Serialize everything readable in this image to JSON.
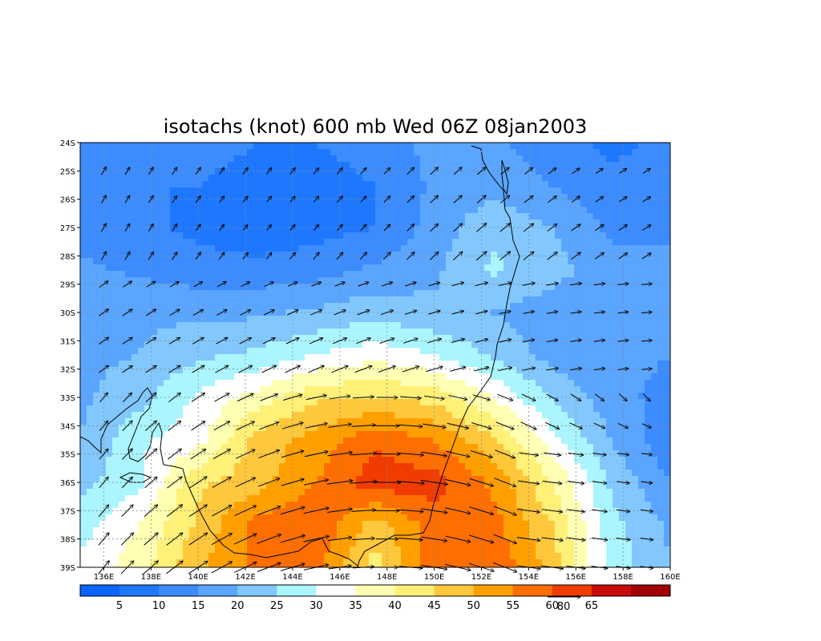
{
  "chart_data": {
    "type": "heatmap",
    "title": "isotachs (knot) 600 mb Wed 06Z 08jan2003",
    "x_ticks": [
      "136E",
      "138E",
      "140E",
      "142E",
      "144E",
      "146E",
      "148E",
      "150E",
      "152E",
      "154E",
      "156E",
      "158E",
      "160E"
    ],
    "y_ticks": [
      "24S",
      "25S",
      "26S",
      "27S",
      "28S",
      "29S",
      "30S",
      "31S",
      "32S",
      "33S",
      "34S",
      "35S",
      "36S",
      "37S",
      "38S",
      "39S"
    ],
    "x_range_deg_east": [
      135,
      160
    ],
    "y_range_deg_south": [
      24,
      39
    ],
    "grid": "dotted",
    "colorbar": {
      "labels": [
        "5",
        "10",
        "15",
        "20",
        "25",
        "30",
        "35",
        "40",
        "45",
        "50",
        "55",
        "60",
        "65"
      ],
      "colors": [
        "#0a64ff",
        "#1e78ff",
        "#3c8cff",
        "#5aa5ff",
        "#82c8ff",
        "#aaf5ff",
        "#ffffff",
        "#ffffb4",
        "#fff078",
        "#ffc83c",
        "#ffa000",
        "#ff6e00",
        "#f03c00",
        "#c80a0a",
        "#a00000"
      ]
    },
    "reference_vector": {
      "label": "80",
      "units": "knot"
    },
    "wind_speed_knots": {
      "lat_deg_south": [
        24,
        25.5,
        27,
        28.5,
        30,
        31.5,
        33,
        34.5,
        36,
        37.5,
        39
      ],
      "lon_deg_east": [
        135,
        137.5,
        140,
        142.5,
        145,
        147.5,
        150,
        152.5,
        155,
        157.5,
        160
      ],
      "values": [
        [
          14,
          12,
          11,
          10,
          10,
          11,
          17,
          16,
          12,
          9,
          11
        ],
        [
          13,
          10,
          10,
          9,
          9,
          10,
          16,
          18,
          15,
          11,
          12
        ],
        [
          13,
          11,
          9,
          6,
          8,
          10,
          17,
          24,
          20,
          14,
          14
        ],
        [
          16,
          14,
          12,
          12,
          13,
          16,
          19,
          26,
          22,
          17,
          16
        ],
        [
          19,
          19,
          19,
          19,
          21,
          23,
          21,
          20,
          17,
          16,
          15
        ],
        [
          19,
          20,
          24,
          26,
          30,
          33,
          30,
          24,
          18,
          17,
          15
        ],
        [
          19,
          23,
          31,
          37,
          44,
          45,
          43,
          35,
          24,
          17,
          13
        ],
        [
          20,
          29,
          33,
          47,
          52,
          59,
          55,
          46,
          32,
          20,
          11
        ],
        [
          23,
          29,
          44,
          48,
          55,
          63,
          62,
          54,
          40,
          24,
          15
        ],
        [
          28,
          35,
          46,
          57,
          60,
          47,
          58,
          57,
          45,
          27,
          19
        ],
        [
          31,
          38,
          49,
          56,
          56,
          43,
          59,
          59,
          48,
          28,
          20
        ]
      ]
    }
  }
}
